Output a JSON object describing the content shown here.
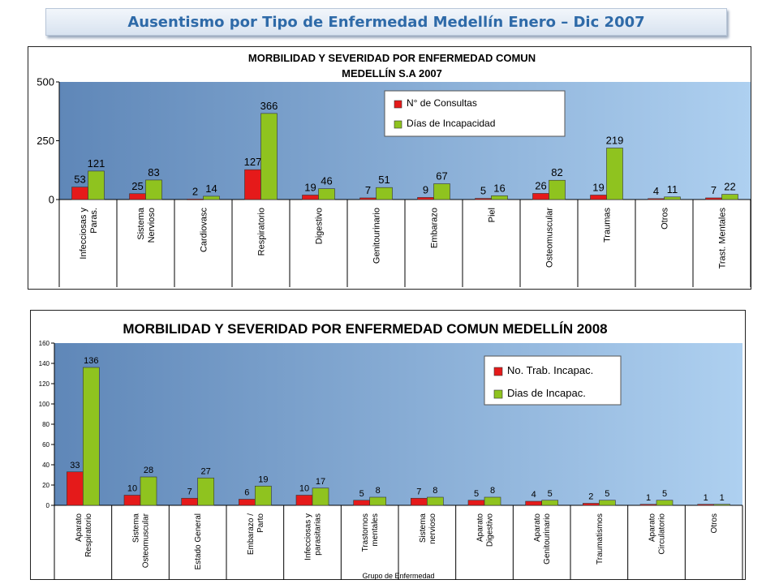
{
  "page_title": "Ausentismo por Tipo de Enfermedad Medellín  Enero – Dic 2007",
  "colors": {
    "red": "#e51a1a",
    "green": "#8fc31f",
    "title": "#2e6aa8"
  },
  "chart_data": [
    {
      "type": "bar",
      "title_lines": [
        "MORBILIDAD Y SEVERIDAD POR ENFERMEDAD COMUN",
        "MEDELLÍN S.A  2007"
      ],
      "categories": [
        [
          "Infecciosas y",
          "Paras."
        ],
        [
          "Sistema",
          "Nervioso"
        ],
        [
          "Cardiovasc"
        ],
        [
          "Respiratorio"
        ],
        [
          "Digestivo"
        ],
        [
          "Genitourinario"
        ],
        [
          "Embarazo"
        ],
        [
          "Piel"
        ],
        [
          "Osteomuscular"
        ],
        [
          "Traumas"
        ],
        [
          "Otros"
        ],
        [
          "Trast. Mentales"
        ]
      ],
      "series": [
        {
          "name": "N° de Consultas",
          "color": "#e51a1a",
          "values": [
            53,
            25,
            2,
            127,
            19,
            7,
            9,
            5,
            26,
            19,
            4,
            7
          ]
        },
        {
          "name": "Días de Incapacidad",
          "color": "#8fc31f",
          "values": [
            121,
            83,
            14,
            366,
            46,
            51,
            67,
            16,
            82,
            219,
            11,
            22
          ]
        }
      ],
      "ylim": [
        0,
        500
      ],
      "yticks": [
        "0",
        "250",
        "500"
      ],
      "xlabel": "",
      "ylabel": "",
      "legend_position": "top-right",
      "grid": false
    },
    {
      "type": "bar",
      "title_lines": [
        "MORBILIDAD Y SEVERIDAD POR ENFERMEDAD COMUN MEDELLÍN 2008"
      ],
      "categories": [
        [
          "Aparato",
          "Respiratorio"
        ],
        [
          "Sistema",
          "Osteomuscular"
        ],
        [
          "Estado General"
        ],
        [
          "Embarazo /",
          "Parto"
        ],
        [
          "Infecciosas y",
          "parasitarias"
        ],
        [
          "Trastornos",
          "mentales"
        ],
        [
          "Sistema",
          "nervioso"
        ],
        [
          "Aparato",
          "Digestivo"
        ],
        [
          "Aparato",
          "Genitourinario"
        ],
        [
          "Traumatismos"
        ],
        [
          "Aparato",
          "Circulatorio"
        ],
        [
          "Otros"
        ]
      ],
      "series": [
        {
          "name": "No. Trab. Incapac.",
          "color": "#e51a1a",
          "values": [
            33,
            10,
            7,
            6,
            10,
            5,
            7,
            5,
            4,
            2,
            1,
            1
          ]
        },
        {
          "name": "Dias de Incapac.",
          "color": "#8fc31f",
          "values": [
            136,
            28,
            27,
            19,
            17,
            8,
            8,
            8,
            5,
            5,
            5,
            1
          ]
        }
      ],
      "ylim": [
        0,
        160
      ],
      "yticks": [
        "0",
        "20",
        "40",
        "60",
        "80",
        "100",
        "120",
        "140",
        "160"
      ],
      "xlabel": "Grupo de Enfermedad",
      "ylabel": "",
      "legend_position": "top-right",
      "grid": false
    }
  ]
}
